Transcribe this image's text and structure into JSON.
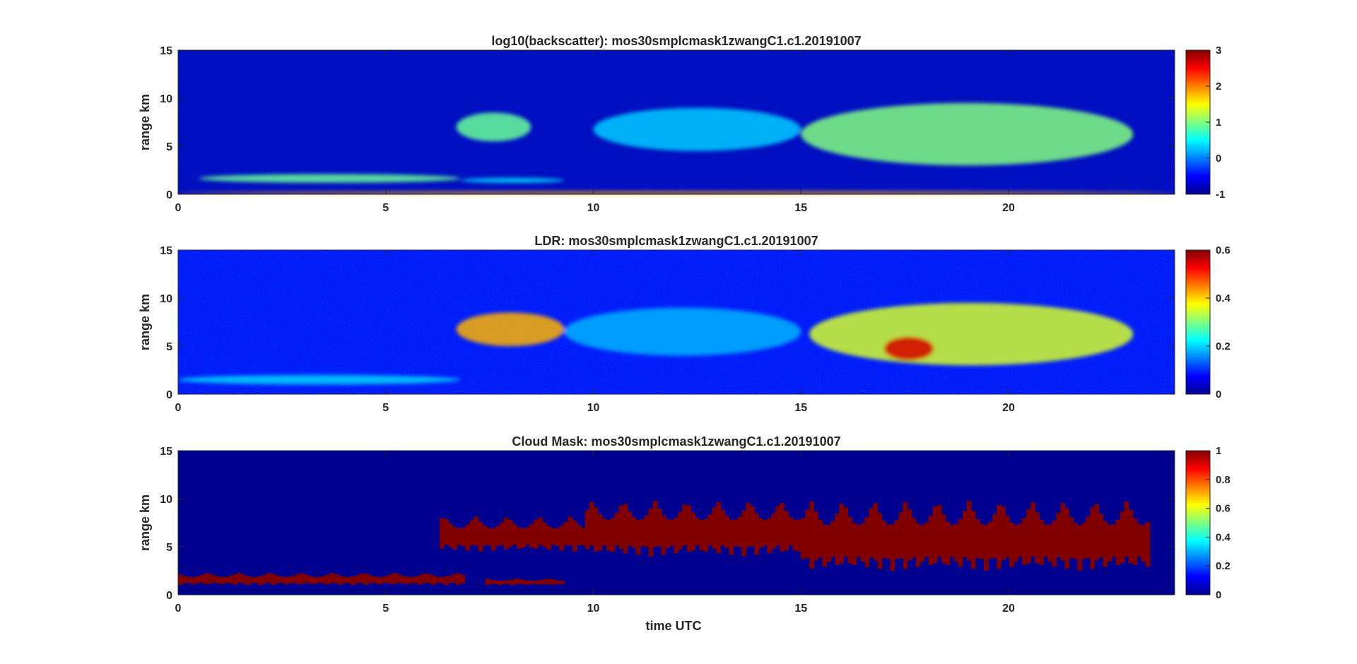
{
  "figure": {
    "xlabel": "time UTC",
    "colormap": "jet"
  },
  "chart_data": [
    {
      "type": "heatmap",
      "title": "log10(backscatter): mos30smplcmask1zwangC1.c1.20191007",
      "xlabel": "",
      "ylabel": "range km",
      "xlim": [
        0,
        24
      ],
      "ylim": [
        0,
        15
      ],
      "x_ticks": [
        0,
        5,
        10,
        15,
        20
      ],
      "y_ticks": [
        0,
        5,
        10,
        15
      ],
      "colorbar": {
        "range": [
          -1,
          3
        ],
        "ticks": [
          -1,
          0,
          1,
          2,
          3
        ]
      },
      "features": [
        {
          "t": [
            0.5,
            6.8
          ],
          "z": [
            1.2,
            2.1
          ],
          "value": 0.9
        },
        {
          "t": [
            6.8,
            9.3
          ],
          "z": [
            1.2,
            1.7
          ],
          "value": 0.4
        },
        {
          "t": [
            6.7,
            8.5
          ],
          "z": [
            5.5,
            8.5
          ],
          "value": 0.9
        },
        {
          "t": [
            10.0,
            15.0
          ],
          "z": [
            4.5,
            9.0
          ],
          "value": 0.3
        },
        {
          "t": [
            15.0,
            23.0
          ],
          "z": [
            3.0,
            9.5
          ],
          "value": 1.0
        },
        {
          "t": [
            0.0,
            24.0
          ],
          "z": [
            0.0,
            0.3
          ],
          "value": 1.8
        }
      ]
    },
    {
      "type": "heatmap",
      "title": "LDR: mos30smplcmask1zwangC1.c1.20191007",
      "xlabel": "",
      "ylabel": "range km",
      "xlim": [
        0,
        24
      ],
      "ylim": [
        0,
        15
      ],
      "x_ticks": [
        0,
        5,
        10,
        15,
        20
      ],
      "y_ticks": [
        0,
        5,
        10,
        15
      ],
      "colorbar": {
        "range": [
          0,
          0.6
        ],
        "ticks": [
          0,
          0.2,
          0.4,
          0.6
        ]
      },
      "features": [
        {
          "t": [
            0.0,
            6.8
          ],
          "z": [
            1.0,
            2.0
          ],
          "value": 0.2
        },
        {
          "t": [
            6.7,
            9.3
          ],
          "z": [
            5.0,
            8.5
          ],
          "value": 0.42
        },
        {
          "t": [
            9.3,
            15.0
          ],
          "z": [
            4.0,
            9.0
          ],
          "value": 0.18
        },
        {
          "t": [
            15.2,
            23.0
          ],
          "z": [
            3.0,
            9.5
          ],
          "value": 0.35
        },
        {
          "t": [
            17.0,
            18.2
          ],
          "z": [
            3.5,
            6.0
          ],
          "value": 0.55
        }
      ]
    },
    {
      "type": "heatmap",
      "title": "Cloud Mask: mos30smplcmask1zwangC1.c1.20191007",
      "xlabel": "time UTC",
      "ylabel": "range km",
      "xlim": [
        0,
        24
      ],
      "ylim": [
        0,
        15
      ],
      "x_ticks": [
        0,
        5,
        10,
        15,
        20
      ],
      "y_ticks": [
        0,
        5,
        10,
        15
      ],
      "colorbar": {
        "range": [
          0,
          1
        ],
        "ticks": [
          0,
          0.2,
          0.4,
          0.6,
          0.8,
          1
        ]
      },
      "features": [
        {
          "t": [
            0.0,
            6.9
          ],
          "z": [
            1.0,
            2.3
          ],
          "value": 1
        },
        {
          "t": [
            7.4,
            9.3
          ],
          "z": [
            1.0,
            1.7
          ],
          "value": 1
        },
        {
          "t": [
            6.3,
            9.8
          ],
          "z": [
            4.5,
            8.2
          ],
          "value": 1
        },
        {
          "t": [
            9.8,
            15.0
          ],
          "z": [
            4.0,
            9.8
          ],
          "value": 1
        },
        {
          "t": [
            15.0,
            23.4
          ],
          "z": [
            2.5,
            9.8
          ],
          "value": 1
        }
      ]
    }
  ]
}
